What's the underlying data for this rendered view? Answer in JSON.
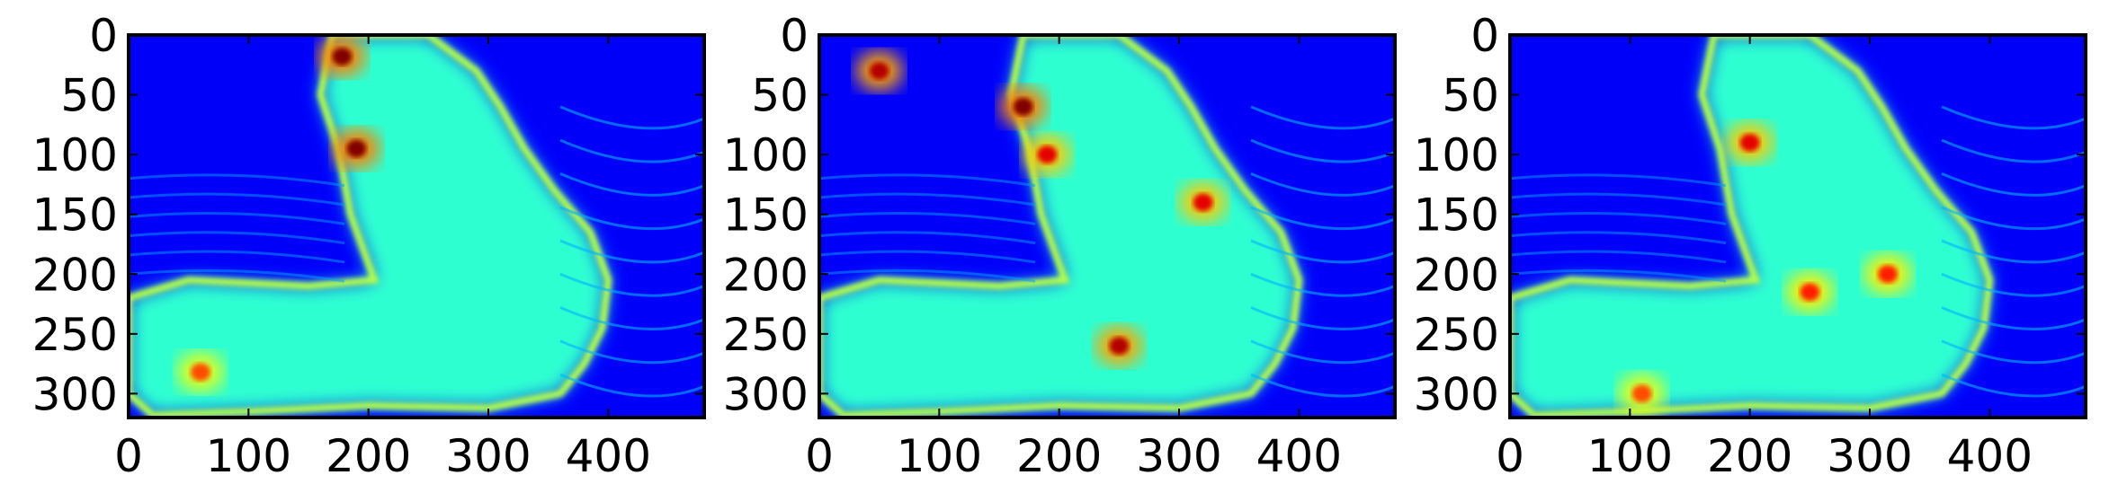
{
  "chart_data": [
    {
      "type": "heatmap",
      "colormap": "jet",
      "title": "",
      "xlabel": "",
      "ylabel": "",
      "xlim": [
        0,
        480
      ],
      "ylim": [
        320,
        0
      ],
      "x_ticks": [
        0,
        100,
        200,
        300,
        400
      ],
      "y_ticks": [
        0,
        50,
        100,
        150,
        200,
        250,
        300
      ],
      "hotspots": [
        {
          "x": 178,
          "y": 18,
          "v": 1.0
        },
        {
          "x": 190,
          "y": 95,
          "v": 1.0
        },
        {
          "x": 60,
          "y": 282,
          "v": 0.8
        }
      ]
    },
    {
      "type": "heatmap",
      "colormap": "jet",
      "title": "",
      "xlabel": "",
      "ylabel": "",
      "xlim": [
        0,
        480
      ],
      "ylim": [
        320,
        0
      ],
      "x_ticks": [
        0,
        100,
        200,
        300,
        400
      ],
      "y_ticks": [
        0,
        50,
        100,
        150,
        200,
        250,
        300
      ],
      "hotspots": [
        {
          "x": 50,
          "y": 30,
          "v": 0.95
        },
        {
          "x": 170,
          "y": 60,
          "v": 1.0
        },
        {
          "x": 190,
          "y": 100,
          "v": 0.9
        },
        {
          "x": 320,
          "y": 140,
          "v": 0.9
        },
        {
          "x": 250,
          "y": 260,
          "v": 0.95
        }
      ]
    },
    {
      "type": "heatmap",
      "colormap": "jet",
      "title": "",
      "xlabel": "",
      "ylabel": "",
      "xlim": [
        0,
        480
      ],
      "ylim": [
        320,
        0
      ],
      "x_ticks": [
        0,
        100,
        200,
        300,
        400
      ],
      "y_ticks": [
        0,
        50,
        100,
        150,
        200,
        250,
        300
      ],
      "hotspots": [
        {
          "x": 200,
          "y": 90,
          "v": 0.9
        },
        {
          "x": 250,
          "y": 215,
          "v": 0.85
        },
        {
          "x": 315,
          "y": 200,
          "v": 0.85
        },
        {
          "x": 110,
          "y": 300,
          "v": 0.8
        }
      ]
    }
  ]
}
